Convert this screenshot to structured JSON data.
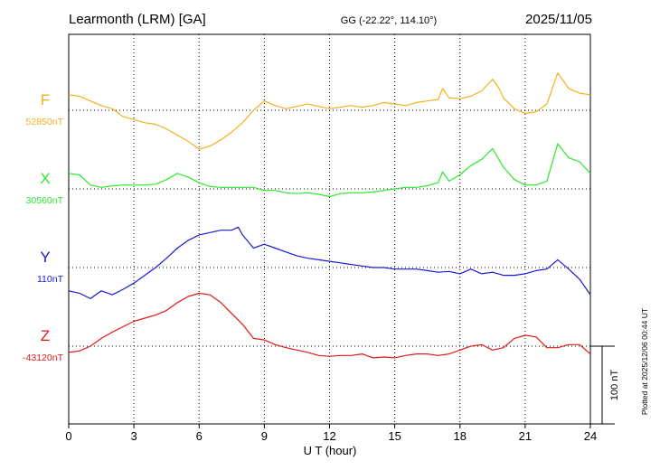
{
  "header": {
    "station": "Learmonth (LRM)  [GA]",
    "coords": "GG (-22.22°, 114.10°)",
    "date": "2025/11/05"
  },
  "side_note": "Plotted at 2025/12/06 00:44 UT",
  "scale_label": "100 nT",
  "colors": {
    "F": "#f2b01e",
    "X": "#2ee82e",
    "Y": "#1a1ad6",
    "Z": "#e01a1a",
    "axis": "#000000"
  },
  "chart_data": {
    "type": "line",
    "xlabel": "U T (hour)",
    "xlim": [
      0,
      24
    ],
    "x_ticks": [
      "0",
      "3",
      "6",
      "9",
      "12",
      "15",
      "18",
      "21",
      "24"
    ],
    "grid": true,
    "series": [
      {
        "name": "F",
        "baseline_label": "52850nT",
        "x": [
          0,
          0.5,
          1,
          1.5,
          2,
          2.5,
          3,
          3.5,
          4,
          4.5,
          5,
          5.5,
          6,
          6.5,
          7,
          7.5,
          8,
          8.5,
          9,
          9.5,
          10,
          10.5,
          11,
          11.5,
          12,
          12.5,
          13,
          13.5,
          14,
          14.5,
          15,
          15.5,
          16,
          16.5,
          17,
          17.2,
          17.5,
          18,
          18.5,
          19,
          19.5,
          19.8,
          20,
          20.5,
          21,
          21.5,
          22,
          22.5,
          23,
          23.5,
          24
        ],
        "y": [
          20,
          18,
          12,
          6,
          2,
          -8,
          -12,
          -16,
          -18,
          -24,
          -32,
          -40,
          -50,
          -46,
          -38,
          -28,
          -16,
          0,
          12,
          6,
          2,
          5,
          8,
          5,
          2,
          4,
          6,
          4,
          6,
          10,
          8,
          6,
          10,
          12,
          14,
          28,
          16,
          15,
          18,
          25,
          40,
          28,
          16,
          2,
          -4,
          -2,
          8,
          48,
          28,
          22,
          20
        ]
      },
      {
        "name": "X",
        "baseline_label": "30560nT",
        "x": [
          0,
          0.5,
          1,
          1.5,
          2,
          2.5,
          3,
          3.5,
          4,
          4.5,
          5,
          5.5,
          6,
          6.5,
          7,
          7.5,
          8,
          8.5,
          9,
          9.5,
          10,
          10.5,
          11,
          11.5,
          12,
          12.5,
          13,
          13.5,
          14,
          14.5,
          15,
          15.5,
          16,
          16.5,
          17,
          17.2,
          17.5,
          18,
          18.5,
          19,
          19.5,
          20,
          20.5,
          21,
          21.5,
          22,
          22.5,
          23,
          23.5,
          24
        ],
        "y": [
          20,
          18,
          5,
          2,
          4,
          5,
          5,
          5,
          6,
          12,
          20,
          15,
          8,
          3,
          2,
          2,
          2,
          2,
          -2,
          -2,
          -5,
          -6,
          -5,
          -7,
          -10,
          -6,
          -5,
          -5,
          -4,
          -2,
          0,
          2,
          2,
          4,
          8,
          22,
          10,
          18,
          30,
          38,
          52,
          28,
          12,
          5,
          5,
          10,
          58,
          40,
          35,
          20
        ]
      },
      {
        "name": "Y",
        "baseline_label": "110nT",
        "x": [
          0,
          0.5,
          1,
          1.5,
          2,
          2.5,
          3,
          3.5,
          4,
          4.5,
          5,
          5.5,
          6,
          6.5,
          7,
          7.5,
          7.8,
          8,
          8.5,
          9,
          9.5,
          10,
          10.5,
          11,
          11.5,
          12,
          12.5,
          13,
          13.5,
          14,
          14.5,
          15,
          15.5,
          16,
          16.5,
          17,
          17.5,
          18,
          18.5,
          19,
          19.5,
          20,
          20.5,
          21,
          21.5,
          22,
          22.5,
          23,
          23.5,
          24
        ],
        "y": [
          -30,
          -33,
          -40,
          -30,
          -35,
          -28,
          -20,
          -10,
          0,
          12,
          25,
          35,
          42,
          45,
          48,
          48,
          52,
          42,
          25,
          30,
          25,
          20,
          15,
          12,
          10,
          8,
          6,
          4,
          2,
          0,
          0,
          -2,
          -2,
          -2,
          -4,
          -6,
          -5,
          -8,
          -2,
          -8,
          -6,
          -10,
          -10,
          -8,
          -4,
          -2,
          10,
          -2,
          -15,
          -35
        ]
      },
      {
        "name": "Z",
        "baseline_label": "-43120nT",
        "x": [
          0,
          0.5,
          1,
          1.5,
          2,
          2.5,
          3,
          3.5,
          4,
          4.5,
          5,
          5.5,
          6,
          6.5,
          7,
          7.5,
          8,
          8.5,
          9,
          9.5,
          10,
          10.5,
          11,
          11.5,
          12,
          12.5,
          13,
          13.5,
          14,
          14.5,
          15,
          15.5,
          16,
          16.5,
          17,
          17.5,
          18,
          18.5,
          19,
          19.5,
          20,
          20.5,
          21,
          21.5,
          22,
          22.5,
          23,
          23.5,
          24
        ],
        "y": [
          -8,
          -6,
          0,
          10,
          18,
          25,
          32,
          36,
          40,
          46,
          56,
          64,
          68,
          66,
          56,
          42,
          28,
          10,
          8,
          2,
          -2,
          -5,
          -8,
          -12,
          -13,
          -12,
          -12,
          -10,
          -15,
          -14,
          -15,
          -12,
          -10,
          -10,
          -12,
          -10,
          -5,
          0,
          2,
          -5,
          -2,
          10,
          14,
          12,
          -2,
          -2,
          2,
          2,
          -10
        ]
      }
    ]
  }
}
